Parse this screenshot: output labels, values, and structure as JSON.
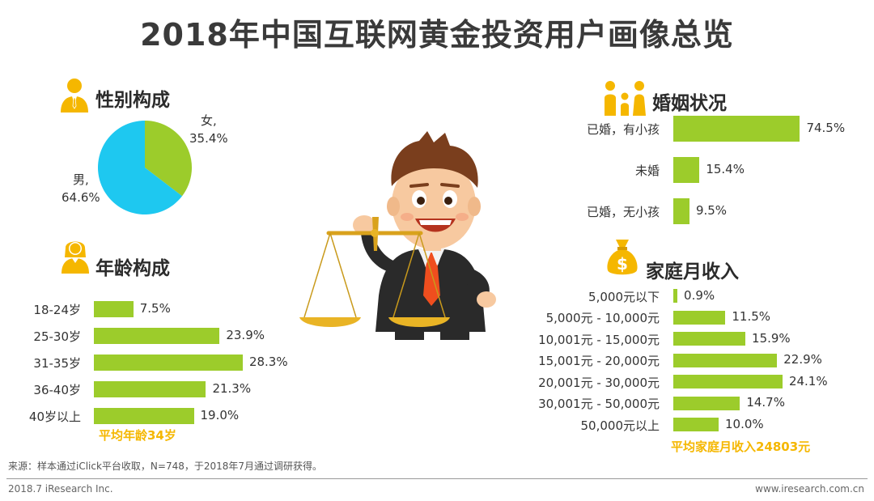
{
  "title": "2018年中国互联网黄金投资用户画像总览",
  "colors": {
    "bar": "#9ccc2b",
    "pie_male": "#1ec8f0",
    "pie_female": "#9ccc2b",
    "highlight": "#f5b700",
    "icon": "#f5b700"
  },
  "chart_data": [
    {
      "type": "pie",
      "title": "性别构成",
      "slices": [
        {
          "label": "女,",
          "value": 35.4,
          "display": "35.4%"
        },
        {
          "label": "男,",
          "value": 64.6,
          "display": "64.6%"
        }
      ]
    },
    {
      "type": "bar",
      "title": "年龄构成",
      "categories": [
        "18-24岁",
        "25-30岁",
        "31-35岁",
        "36-40岁",
        "40岁以上"
      ],
      "values": [
        7.5,
        23.9,
        28.3,
        21.3,
        19.0
      ],
      "display": [
        "7.5%",
        "23.9%",
        "28.3%",
        "21.3%",
        "19.0%"
      ],
      "note": "平均年龄34岁"
    },
    {
      "type": "bar",
      "title": "婚姻状况",
      "categories": [
        "已婚，有小孩",
        "未婚",
        "已婚，无小孩"
      ],
      "values": [
        74.5,
        15.4,
        9.5
      ],
      "display": [
        "74.5%",
        "15.4%",
        "9.5%"
      ]
    },
    {
      "type": "bar",
      "title": "家庭月收入",
      "categories": [
        "5,000元以下",
        "5,000元 - 10,000元",
        "10,001元 - 15,000元",
        "15,001元 - 20,000元",
        "20,001元 - 30,000元",
        "30,001元 - 50,000元",
        "50,000元以上"
      ],
      "values": [
        0.9,
        11.5,
        15.9,
        22.9,
        24.1,
        14.7,
        10.0
      ],
      "display": [
        "0.9%",
        "11.5%",
        "15.9%",
        "22.9%",
        "24.1%",
        "14.7%",
        "10.0%"
      ],
      "note": "平均家庭月收入24803元"
    }
  ],
  "source": "来源：样本通过iClick平台收取，N=748，于2018年7月通过调研获得。",
  "footer": {
    "left": "2018.7 iResearch Inc.",
    "right": "www.iresearch.com.cn"
  },
  "icons": [
    "male-user-icon",
    "female-user-icon",
    "family-icon",
    "money-bag-icon",
    "businessman-scale-illustration"
  ]
}
